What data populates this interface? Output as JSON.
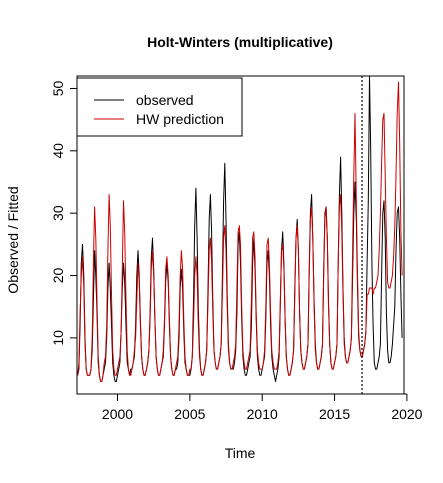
{
  "chart_data": {
    "type": "line",
    "title": "Holt-Winters (multiplicative)",
    "xlabel": "Time",
    "ylabel": "Observed / Fitted",
    "xlim": [
      1997.2,
      2019.8
    ],
    "ylim": [
      1.0,
      52.0
    ],
    "x_ticks": [
      2000,
      2005,
      2010,
      2015,
      2020
    ],
    "y_ticks": [
      10,
      20,
      30,
      40,
      50
    ],
    "legend_position": "top-left",
    "forecast_start": 2016.9,
    "series": [
      {
        "name": "observed",
        "color": "#000000",
        "start": 1997.25,
        "frequency": 12,
        "values": [
          4,
          5,
          12,
          22,
          25,
          20,
          10,
          5,
          4,
          4,
          4,
          5,
          8,
          16,
          24,
          20,
          14,
          6,
          4,
          3,
          3,
          4,
          5,
          6,
          10,
          18,
          22,
          18,
          12,
          6,
          4,
          3,
          3,
          4,
          5,
          6,
          11,
          18,
          22,
          19,
          12,
          6,
          5,
          4,
          5,
          5,
          6,
          7,
          12,
          20,
          24,
          20,
          13,
          7,
          5,
          4,
          4,
          5,
          6,
          8,
          14,
          23,
          26,
          21,
          13,
          7,
          5,
          4,
          4,
          5,
          6,
          7,
          12,
          19,
          22,
          19,
          12,
          7,
          5,
          4,
          4,
          5,
          5,
          6,
          10,
          18,
          21,
          18,
          11,
          6,
          5,
          4,
          4,
          4,
          5,
          7,
          16,
          28,
          34,
          26,
          15,
          8,
          5,
          4,
          4,
          5,
          6,
          8,
          17,
          29,
          33,
          27,
          16,
          8,
          6,
          5,
          5,
          6,
          7,
          9,
          20,
          32,
          38,
          29,
          17,
          9,
          6,
          5,
          5,
          5,
          6,
          8,
          14,
          25,
          27,
          22,
          13,
          7,
          5,
          4,
          4,
          5,
          6,
          7,
          12,
          22,
          26,
          21,
          13,
          7,
          5,
          4,
          4,
          5,
          6,
          7,
          13,
          22,
          24,
          20,
          12,
          7,
          5,
          4,
          3,
          4,
          5,
          7,
          15,
          24,
          27,
          22,
          13,
          7,
          5,
          4,
          4,
          5,
          6,
          8,
          18,
          26,
          29,
          24,
          14,
          8,
          6,
          5,
          5,
          6,
          7,
          9,
          21,
          30,
          33,
          26,
          16,
          9,
          6,
          5,
          5,
          6,
          7,
          9,
          21,
          30,
          31,
          26,
          16,
          9,
          6,
          5,
          5,
          6,
          7,
          9,
          22,
          33,
          39,
          30,
          18,
          10,
          7,
          6,
          6,
          7,
          8,
          10,
          20,
          30,
          35,
          29,
          18,
          10,
          8,
          7,
          7,
          8,
          9,
          11,
          22,
          32,
          52,
          40,
          22,
          12,
          6,
          5,
          5,
          6,
          7,
          9,
          20,
          30,
          32,
          26,
          14,
          8,
          6,
          6,
          7,
          9,
          12,
          15,
          24,
          30,
          31,
          26,
          17,
          10
        ]
      },
      {
        "name": "HW prediction",
        "color": "#cc0000",
        "start": 1997.25,
        "frequency": 12,
        "values": [
          4,
          6,
          14,
          20,
          23,
          18,
          9,
          5,
          4,
          4,
          4,
          5,
          10,
          22,
          31,
          26,
          16,
          7,
          4,
          3,
          3,
          4,
          6,
          7,
          12,
          24,
          33,
          28,
          17,
          8,
          5,
          4,
          4,
          5,
          6,
          7,
          11,
          21,
          32,
          27,
          16,
          8,
          5,
          4,
          4,
          5,
          6,
          8,
          10,
          16,
          22,
          19,
          12,
          7,
          5,
          4,
          4,
          5,
          6,
          8,
          13,
          21,
          24,
          20,
          13,
          7,
          5,
          4,
          4,
          5,
          6,
          8,
          13,
          21,
          23,
          20,
          13,
          7,
          5,
          4,
          4,
          5,
          6,
          7,
          12,
          20,
          24,
          21,
          13,
          7,
          5,
          4,
          4,
          5,
          5,
          7,
          12,
          20,
          23,
          20,
          12,
          7,
          5,
          4,
          4,
          5,
          6,
          8,
          15,
          24,
          26,
          22,
          14,
          8,
          6,
          5,
          5,
          6,
          7,
          9,
          17,
          26,
          28,
          24,
          15,
          8,
          6,
          5,
          5,
          6,
          7,
          9,
          18,
          27,
          28,
          25,
          15,
          8,
          6,
          5,
          5,
          6,
          7,
          8,
          16,
          26,
          27,
          23,
          14,
          8,
          6,
          5,
          5,
          5,
          6,
          8,
          15,
          25,
          26,
          22,
          14,
          8,
          6,
          5,
          5,
          5,
          6,
          8,
          16,
          24,
          25,
          21,
          13,
          7,
          5,
          4,
          4,
          5,
          6,
          8,
          17,
          26,
          28,
          24,
          14,
          8,
          6,
          5,
          5,
          6,
          7,
          9,
          20,
          29,
          31,
          26,
          15,
          8,
          6,
          5,
          5,
          6,
          7,
          9,
          20,
          29,
          31,
          26,
          15,
          9,
          6,
          5,
          5,
          6,
          7,
          9,
          22,
          31,
          33,
          27,
          17,
          9,
          7,
          6,
          6,
          7,
          8,
          10,
          24,
          36,
          46,
          32,
          20,
          11,
          8,
          7,
          7,
          8,
          9,
          11,
          17,
          17,
          18,
          18,
          18,
          17,
          18,
          18,
          19,
          20,
          24,
          30,
          38,
          45,
          46,
          36,
          26,
          19,
          18,
          18,
          19,
          20,
          23,
          28,
          36,
          46,
          51,
          41,
          27,
          20
        ]
      }
    ]
  }
}
